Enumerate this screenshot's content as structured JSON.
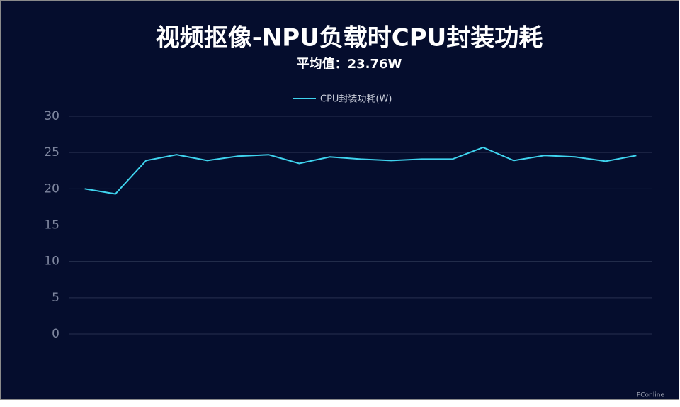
{
  "chart_data": {
    "type": "line",
    "title": "视频抠像-NPU负载时CPU封装功耗",
    "subtitle": "平均值：23.76W",
    "categories": [
      null,
      null,
      null,
      null,
      null,
      null,
      null,
      null,
      null,
      null,
      null,
      null,
      null,
      null,
      null,
      null,
      null,
      null,
      null
    ],
    "series": [
      {
        "name": "CPU封装功耗(W)",
        "color": "#3fd3ee",
        "values": [
          20.0,
          19.3,
          23.9,
          24.7,
          23.9,
          24.5,
          24.7,
          23.5,
          24.4,
          24.1,
          23.9,
          24.1,
          24.1,
          25.7,
          23.9,
          24.6,
          24.4,
          23.8,
          24.6
        ]
      }
    ],
    "ylim": [
      0,
      30
    ],
    "yticks": [
      0,
      5,
      10,
      15,
      20,
      25,
      30
    ],
    "grid": true,
    "legend": "top",
    "watermark": "PConline"
  }
}
